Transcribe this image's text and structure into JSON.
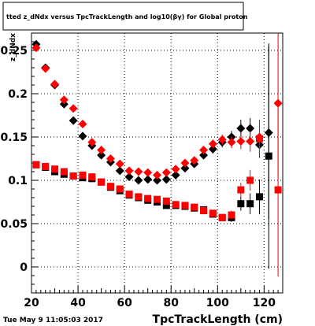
{
  "title": "tted z_dNdx versus TpcTrackLength and log10(βγ) for Global proton",
  "timestamp": "Tue May  9 11:05:03 2017",
  "chart_data": {
    "type": "scatter",
    "xlabel": "TpcTrackLength (cm)",
    "ylabel": "z_dNdx",
    "xlim": [
      20,
      128
    ],
    "ylim": [
      -0.03,
      0.27
    ],
    "x_ticks": [
      20,
      40,
      60,
      80,
      100,
      120
    ],
    "x_tick_labels": [
      "20",
      "40",
      "60",
      "80",
      "100",
      "120"
    ],
    "y_ticks": [
      0,
      0.05,
      0.1,
      0.15,
      0.2,
      0.25
    ],
    "y_tick_labels": [
      "0",
      "0.05",
      "0.1",
      "0.15",
      "0.2",
      "0.25"
    ],
    "grid": true,
    "series": [
      {
        "color": "#000000",
        "marker": "diamond",
        "points": [
          {
            "x": 22,
            "y": 0.257,
            "err": 0.002
          },
          {
            "x": 26,
            "y": 0.23,
            "err": 0.002
          },
          {
            "x": 30,
            "y": 0.21,
            "err": 0.002
          },
          {
            "x": 34,
            "y": 0.188,
            "err": 0.002
          },
          {
            "x": 38,
            "y": 0.169,
            "err": 0.002
          },
          {
            "x": 42,
            "y": 0.151,
            "err": 0.002
          },
          {
            "x": 46,
            "y": 0.14,
            "err": 0.002
          },
          {
            "x": 50,
            "y": 0.129,
            "err": 0.002
          },
          {
            "x": 54,
            "y": 0.121,
            "err": 0.002
          },
          {
            "x": 58,
            "y": 0.111,
            "err": 0.002
          },
          {
            "x": 62,
            "y": 0.104,
            "err": 0.002
          },
          {
            "x": 66,
            "y": 0.1,
            "err": 0.002
          },
          {
            "x": 70,
            "y": 0.101,
            "err": 0.002
          },
          {
            "x": 74,
            "y": 0.1,
            "err": 0.002
          },
          {
            "x": 78,
            "y": 0.101,
            "err": 0.002
          },
          {
            "x": 82,
            "y": 0.106,
            "err": 0.003
          },
          {
            "x": 86,
            "y": 0.114,
            "err": 0.003
          },
          {
            "x": 90,
            "y": 0.119,
            "err": 0.003
          },
          {
            "x": 94,
            "y": 0.129,
            "err": 0.004
          },
          {
            "x": 98,
            "y": 0.136,
            "err": 0.005
          },
          {
            "x": 102,
            "y": 0.144,
            "err": 0.006
          },
          {
            "x": 106,
            "y": 0.15,
            "err": 0.007
          },
          {
            "x": 110,
            "y": 0.16,
            "err": 0.01
          },
          {
            "x": 114,
            "y": 0.16,
            "err": 0.012
          },
          {
            "x": 118,
            "y": 0.141,
            "err": 0.015
          },
          {
            "x": 122,
            "y": 0.155,
            "err": 0.1
          }
        ]
      },
      {
        "color": "#ff0000",
        "marker": "diamond",
        "points": [
          {
            "x": 22,
            "y": 0.253,
            "err": 0.002
          },
          {
            "x": 26,
            "y": 0.229,
            "err": 0.002
          },
          {
            "x": 30,
            "y": 0.211,
            "err": 0.002
          },
          {
            "x": 34,
            "y": 0.193,
            "err": 0.002
          },
          {
            "x": 38,
            "y": 0.183,
            "err": 0.002
          },
          {
            "x": 42,
            "y": 0.165,
            "err": 0.002
          },
          {
            "x": 46,
            "y": 0.144,
            "err": 0.002
          },
          {
            "x": 50,
            "y": 0.135,
            "err": 0.002
          },
          {
            "x": 54,
            "y": 0.125,
            "err": 0.002
          },
          {
            "x": 58,
            "y": 0.119,
            "err": 0.002
          },
          {
            "x": 62,
            "y": 0.111,
            "err": 0.002
          },
          {
            "x": 66,
            "y": 0.11,
            "err": 0.002
          },
          {
            "x": 70,
            "y": 0.109,
            "err": 0.002
          },
          {
            "x": 74,
            "y": 0.106,
            "err": 0.002
          },
          {
            "x": 78,
            "y": 0.109,
            "err": 0.002
          },
          {
            "x": 82,
            "y": 0.113,
            "err": 0.003
          },
          {
            "x": 86,
            "y": 0.12,
            "err": 0.003
          },
          {
            "x": 90,
            "y": 0.123,
            "err": 0.003
          },
          {
            "x": 94,
            "y": 0.135,
            "err": 0.004
          },
          {
            "x": 98,
            "y": 0.142,
            "err": 0.005
          },
          {
            "x": 102,
            "y": 0.147,
            "err": 0.006
          },
          {
            "x": 106,
            "y": 0.144,
            "err": 0.007
          },
          {
            "x": 110,
            "y": 0.145,
            "err": 0.009
          },
          {
            "x": 114,
            "y": 0.145,
            "err": 0.012
          },
          {
            "x": 118,
            "y": 0.15,
            "err": 0.02
          },
          {
            "x": 126,
            "y": 0.189,
            "err": 0.085
          }
        ]
      },
      {
        "color": "#000000",
        "marker": "square",
        "points": [
          {
            "x": 22,
            "y": 0.118,
            "err": 0.002
          },
          {
            "x": 26,
            "y": 0.115,
            "err": 0.002
          },
          {
            "x": 30,
            "y": 0.11,
            "err": 0.002
          },
          {
            "x": 34,
            "y": 0.107,
            "err": 0.002
          },
          {
            "x": 38,
            "y": 0.105,
            "err": 0.002
          },
          {
            "x": 42,
            "y": 0.103,
            "err": 0.002
          },
          {
            "x": 46,
            "y": 0.102,
            "err": 0.002
          },
          {
            "x": 50,
            "y": 0.098,
            "err": 0.002
          },
          {
            "x": 54,
            "y": 0.092,
            "err": 0.002
          },
          {
            "x": 58,
            "y": 0.088,
            "err": 0.002
          },
          {
            "x": 62,
            "y": 0.083,
            "err": 0.002
          },
          {
            "x": 66,
            "y": 0.08,
            "err": 0.002
          },
          {
            "x": 70,
            "y": 0.077,
            "err": 0.002
          },
          {
            "x": 74,
            "y": 0.075,
            "err": 0.002
          },
          {
            "x": 78,
            "y": 0.071,
            "err": 0.002
          },
          {
            "x": 82,
            "y": 0.071,
            "err": 0.002
          },
          {
            "x": 86,
            "y": 0.07,
            "err": 0.002
          },
          {
            "x": 90,
            "y": 0.068,
            "err": 0.003
          },
          {
            "x": 94,
            "y": 0.066,
            "err": 0.003
          },
          {
            "x": 98,
            "y": 0.061,
            "err": 0.003
          },
          {
            "x": 102,
            "y": 0.057,
            "err": 0.004
          },
          {
            "x": 106,
            "y": 0.057,
            "err": 0.005
          },
          {
            "x": 110,
            "y": 0.073,
            "err": 0.008
          },
          {
            "x": 114,
            "y": 0.073,
            "err": 0.012
          },
          {
            "x": 118,
            "y": 0.081,
            "err": 0.02
          },
          {
            "x": 122,
            "y": 0.128,
            "err": 0.13
          }
        ]
      },
      {
        "color": "#ff0000",
        "marker": "square",
        "points": [
          {
            "x": 22,
            "y": 0.118,
            "err": 0.002
          },
          {
            "x": 26,
            "y": 0.116,
            "err": 0.002
          },
          {
            "x": 30,
            "y": 0.113,
            "err": 0.002
          },
          {
            "x": 34,
            "y": 0.11,
            "err": 0.002
          },
          {
            "x": 38,
            "y": 0.105,
            "err": 0.002
          },
          {
            "x": 42,
            "y": 0.106,
            "err": 0.002
          },
          {
            "x": 46,
            "y": 0.104,
            "err": 0.002
          },
          {
            "x": 50,
            "y": 0.098,
            "err": 0.002
          },
          {
            "x": 54,
            "y": 0.093,
            "err": 0.002
          },
          {
            "x": 58,
            "y": 0.09,
            "err": 0.002
          },
          {
            "x": 62,
            "y": 0.084,
            "err": 0.002
          },
          {
            "x": 66,
            "y": 0.081,
            "err": 0.002
          },
          {
            "x": 70,
            "y": 0.079,
            "err": 0.002
          },
          {
            "x": 74,
            "y": 0.078,
            "err": 0.002
          },
          {
            "x": 78,
            "y": 0.076,
            "err": 0.002
          },
          {
            "x": 82,
            "y": 0.072,
            "err": 0.002
          },
          {
            "x": 86,
            "y": 0.071,
            "err": 0.002
          },
          {
            "x": 90,
            "y": 0.069,
            "err": 0.003
          },
          {
            "x": 94,
            "y": 0.065,
            "err": 0.003
          },
          {
            "x": 98,
            "y": 0.062,
            "err": 0.003
          },
          {
            "x": 102,
            "y": 0.057,
            "err": 0.004
          },
          {
            "x": 106,
            "y": 0.06,
            "err": 0.005
          },
          {
            "x": 110,
            "y": 0.089,
            "err": 0.008
          },
          {
            "x": 114,
            "y": 0.1,
            "err": 0.012
          },
          {
            "x": 118,
            "y": 0.148,
            "err": 0.02
          },
          {
            "x": 126,
            "y": 0.089,
            "err": 0.1
          }
        ]
      }
    ]
  }
}
